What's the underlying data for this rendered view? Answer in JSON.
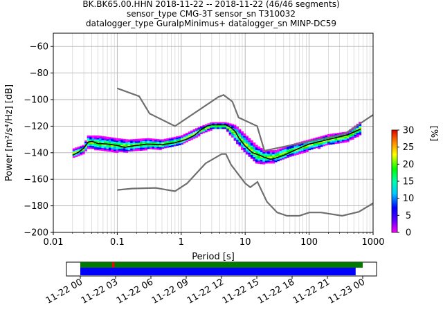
{
  "chart_data": {
    "type": "heatmap",
    "title_lines": [
      "BK.BK65.00.HHN   2018-11-22 -- 2018-11-22  (46/46 segments)",
      "sensor_type CMG-3T sensor_sn T310032",
      "datalogger_type GuralpMinimus+ datalogger_sn MINP-DC59"
    ],
    "xlabel": "Period [s]",
    "ylabel": "Power [m²/s⁴/Hz] [dB]",
    "x_scale": "log",
    "xlim": [
      0.01,
      1000
    ],
    "ylim": [
      -200,
      -50
    ],
    "x_ticks": [
      {
        "value": 0.01,
        "label": "0.01"
      },
      {
        "value": 0.1,
        "label": "0.1"
      },
      {
        "value": 1,
        "label": "1"
      },
      {
        "value": 10,
        "label": "10"
      },
      {
        "value": 100,
        "label": "100"
      },
      {
        "value": 1000,
        "label": "1000"
      }
    ],
    "y_ticks": [
      {
        "value": -60,
        "label": "−60"
      },
      {
        "value": -80,
        "label": "−80"
      },
      {
        "value": -100,
        "label": "−100"
      },
      {
        "value": -120,
        "label": "−120"
      },
      {
        "value": -140,
        "label": "−140"
      },
      {
        "value": -160,
        "label": "−160"
      },
      {
        "value": -180,
        "label": "−180"
      },
      {
        "value": -200,
        "label": "−200"
      }
    ],
    "grid": true,
    "noise_models": {
      "high": [
        [
          0.1,
          -91.5
        ],
        [
          0.22,
          -97.5
        ],
        [
          0.32,
          -110.5
        ],
        [
          0.8,
          -120
        ],
        [
          3.8,
          -98
        ],
        [
          4.6,
          -96.5
        ],
        [
          6.3,
          -101.5
        ],
        [
          7.9,
          -113.5
        ],
        [
          15.4,
          -120
        ],
        [
          20,
          -138.5
        ],
        [
          354,
          -126
        ],
        [
          1000,
          -111.5
        ]
      ],
      "low": [
        [
          0.1,
          -168
        ],
        [
          0.17,
          -167
        ],
        [
          0.4,
          -166.5
        ],
        [
          0.8,
          -169
        ],
        [
          1.24,
          -163
        ],
        [
          2.4,
          -148
        ],
        [
          4.3,
          -141
        ],
        [
          5,
          -141
        ],
        [
          6,
          -149
        ],
        [
          10,
          -163
        ],
        [
          12,
          -166
        ],
        [
          15.6,
          -162
        ],
        [
          21.9,
          -177
        ],
        [
          31.6,
          -185
        ],
        [
          45,
          -187.5
        ],
        [
          70,
          -187.5
        ],
        [
          101,
          -185
        ],
        [
          154,
          -185
        ],
        [
          328,
          -187.5
        ],
        [
          600,
          -184.5
        ],
        [
          1000,
          -178
        ]
      ]
    },
    "median": [
      [
        0.02,
        -142
      ],
      [
        0.025,
        -139.5
      ],
      [
        0.03,
        -136.5
      ],
      [
        0.035,
        -132
      ],
      [
        0.04,
        -131.5
      ],
      [
        0.05,
        -133
      ],
      [
        0.07,
        -133.5
      ],
      [
        0.1,
        -134.5
      ],
      [
        0.13,
        -136
      ],
      [
        0.2,
        -134.5
      ],
      [
        0.3,
        -133.5
      ],
      [
        0.5,
        -134
      ],
      [
        0.8,
        -132.5
      ],
      [
        1.2,
        -130
      ],
      [
        1.6,
        -127
      ],
      [
        2,
        -123
      ],
      [
        2.5,
        -120
      ],
      [
        3,
        -119
      ],
      [
        4,
        -119
      ],
      [
        5,
        -119
      ],
      [
        6,
        -121
      ],
      [
        7,
        -124
      ],
      [
        8,
        -129
      ],
      [
        10,
        -135
      ],
      [
        13,
        -140
      ],
      [
        17,
        -142
      ],
      [
        20,
        -143.5
      ],
      [
        25,
        -145
      ],
      [
        30,
        -144
      ],
      [
        40,
        -142
      ],
      [
        60,
        -138
      ],
      [
        100,
        -133.5
      ],
      [
        200,
        -130
      ],
      [
        400,
        -126.5
      ],
      [
        650,
        -122
      ]
    ],
    "density_band": [
      [
        0.02,
        -137,
        -144
      ],
      [
        0.03,
        -134,
        -140
      ],
      [
        0.035,
        -127,
        -136
      ],
      [
        0.05,
        -127,
        -138
      ],
      [
        0.1,
        -129,
        -139
      ],
      [
        0.15,
        -130,
        -139
      ],
      [
        0.3,
        -129,
        -137
      ],
      [
        0.5,
        -130,
        -137
      ],
      [
        1,
        -127,
        -134
      ],
      [
        2,
        -120,
        -126
      ],
      [
        3,
        -117,
        -122
      ],
      [
        5,
        -117,
        -122
      ],
      [
        7,
        -119,
        -131
      ],
      [
        10,
        -126,
        -140
      ],
      [
        15,
        -134,
        -148
      ],
      [
        20,
        -138,
        -148
      ],
      [
        30,
        -138,
        -147
      ],
      [
        50,
        -134,
        -143
      ],
      [
        100,
        -130,
        -138
      ],
      [
        200,
        -126,
        -134
      ],
      [
        400,
        -124,
        -131
      ],
      [
        650,
        -116,
        -126
      ]
    ],
    "colorbar": {
      "label": "[%]",
      "min": 0,
      "max": 30,
      "ticks": [
        {
          "value": 0,
          "label": "0"
        },
        {
          "value": 5,
          "label": "5"
        },
        {
          "value": 10,
          "label": "10"
        },
        {
          "value": 15,
          "label": "15"
        },
        {
          "value": 20,
          "label": "20"
        },
        {
          "value": 25,
          "label": "25"
        },
        {
          "value": 30,
          "label": "30"
        }
      ]
    },
    "timeline": {
      "ticks": [
        "11-22 00",
        "11-22 03",
        "11-22 06",
        "11-22 09",
        "11-22 12",
        "11-22 15",
        "11-22 18",
        "11-22 21",
        "11-23 00"
      ],
      "coverage_start_hours": 0,
      "coverage_end_hours": 24,
      "data_end_hours": 23.4,
      "gap_marker_hours": 2.8
    }
  }
}
